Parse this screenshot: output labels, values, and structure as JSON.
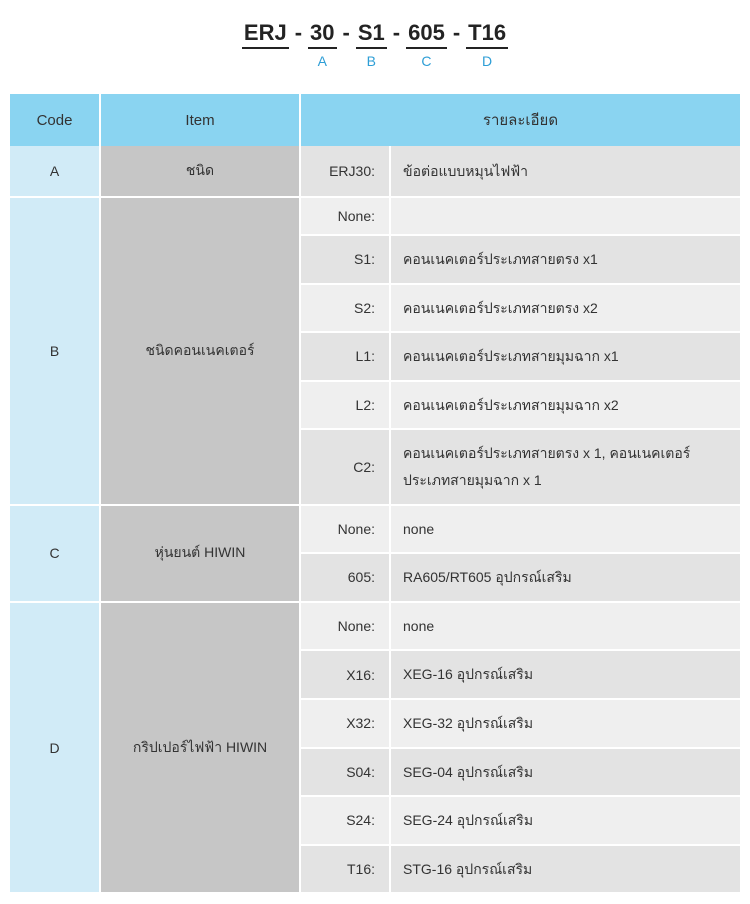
{
  "colors": {
    "header_bg": "#8ad4f1",
    "code_bg": "#d1ebf7",
    "item_bg": "#c6c6c6",
    "row_even": "#e3e3e3",
    "row_odd": "#efefef",
    "border": "#ffffff",
    "text": "#333333",
    "accent": "#2e9ed6",
    "underline": "#232323"
  },
  "partcode": {
    "segments": [
      {
        "main": "ERJ",
        "sub": ""
      },
      {
        "main": "30",
        "sub": "A"
      },
      {
        "main": "S1",
        "sub": "B"
      },
      {
        "main": "605",
        "sub": "C"
      },
      {
        "main": "T16",
        "sub": "D"
      }
    ],
    "dash": "-"
  },
  "headers": {
    "code": "Code",
    "item": "Item",
    "detail": "รายละเอียด"
  },
  "groups": [
    {
      "code": "A",
      "item": "ชนิด",
      "rows": [
        {
          "key": "ERJ30:",
          "desc": "ข้อต่อแบบหมุนไฟฟ้า"
        }
      ]
    },
    {
      "code": "B",
      "item": "ชนิดคอนเนคเตอร์",
      "rows": [
        {
          "key": "None:",
          "desc": ""
        },
        {
          "key": "S1:",
          "desc": "คอนเนคเตอร์ประเภทสายตรง x1"
        },
        {
          "key": "S2:",
          "desc": "คอนเนคเตอร์ประเภทสายตรง x2"
        },
        {
          "key": "L1:",
          "desc": "คอนเนคเตอร์ประเภทสายมุมฉาก x1"
        },
        {
          "key": "L2:",
          "desc": "คอนเนคเตอร์ประเภทสายมุมฉาก x2"
        },
        {
          "key": "C2:",
          "desc": "คอนเนคเตอร์ประเภทสายตรง x 1, คอนเนคเตอร์ประเภทสายมุมฉาก x 1"
        }
      ]
    },
    {
      "code": "C",
      "item": "หุ่นยนต์ HIWIN",
      "rows": [
        {
          "key": "None:",
          "desc": "none"
        },
        {
          "key": "605:",
          "desc": "RA605/RT605 อุปกรณ์เสริม"
        }
      ]
    },
    {
      "code": "D",
      "item": "กริปเปอร์ไฟฟ้า HIWIN",
      "rows": [
        {
          "key": "None:",
          "desc": "none"
        },
        {
          "key": "X16:",
          "desc": "XEG-16 อุปกรณ์เสริม"
        },
        {
          "key": "X32:",
          "desc": "XEG-32 อุปกรณ์เสริม"
        },
        {
          "key": "S04:",
          "desc": "SEG-04 อุปกรณ์เสริม"
        },
        {
          "key": "S24:",
          "desc": "SEG-24 อุปกรณ์เสริม"
        },
        {
          "key": "T16:",
          "desc": "STG-16 อุปกรณ์เสริม"
        }
      ]
    }
  ]
}
